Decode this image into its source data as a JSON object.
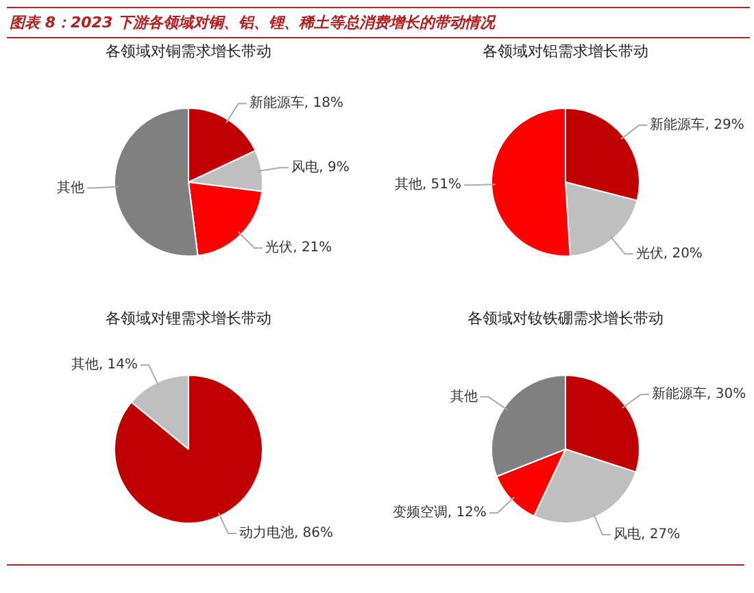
{
  "chart_data": [
    {
      "type": "other",
      "title": "图表 8：2023 下游各领域对铜、铝、锂、稀土等总消费增长的带动情况"
    },
    {
      "type": "pie",
      "title": "各领域对铜需求增长带动",
      "categories": [
        "新能源车",
        "风电",
        "光伏",
        "其他"
      ],
      "values": [
        18,
        9,
        21,
        52
      ],
      "colors": [
        "#c00000",
        "#bfbfbf",
        "#ff0000",
        "#808080"
      ],
      "value_labels": [
        "18%",
        "9%",
        "21%",
        null
      ]
    },
    {
      "type": "pie",
      "title": "各领域对铝需求增长带动",
      "categories": [
        "新能源车",
        "光伏",
        "其他"
      ],
      "values": [
        29,
        20,
        51
      ],
      "colors": [
        "#c00000",
        "#bfbfbf",
        "#ff0000"
      ],
      "value_labels": [
        "29%",
        "20%",
        "51%"
      ]
    },
    {
      "type": "pie",
      "title": "各领域对锂需求增长带动",
      "categories": [
        "动力电池",
        "其他"
      ],
      "values": [
        86,
        14
      ],
      "colors": [
        "#c00000",
        "#bfbfbf"
      ],
      "value_labels": [
        "86%",
        "14%"
      ]
    },
    {
      "type": "pie",
      "title": "各领域对钕铁硼需求增长带动",
      "categories": [
        "新能源车",
        "风电",
        "变频空调",
        "其他"
      ],
      "values": [
        30,
        27,
        12,
        31
      ],
      "colors": [
        "#c00000",
        "#bfbfbf",
        "#ff0000",
        "#808080"
      ],
      "value_labels": [
        "30%",
        "27%",
        "12%",
        null
      ]
    }
  ]
}
